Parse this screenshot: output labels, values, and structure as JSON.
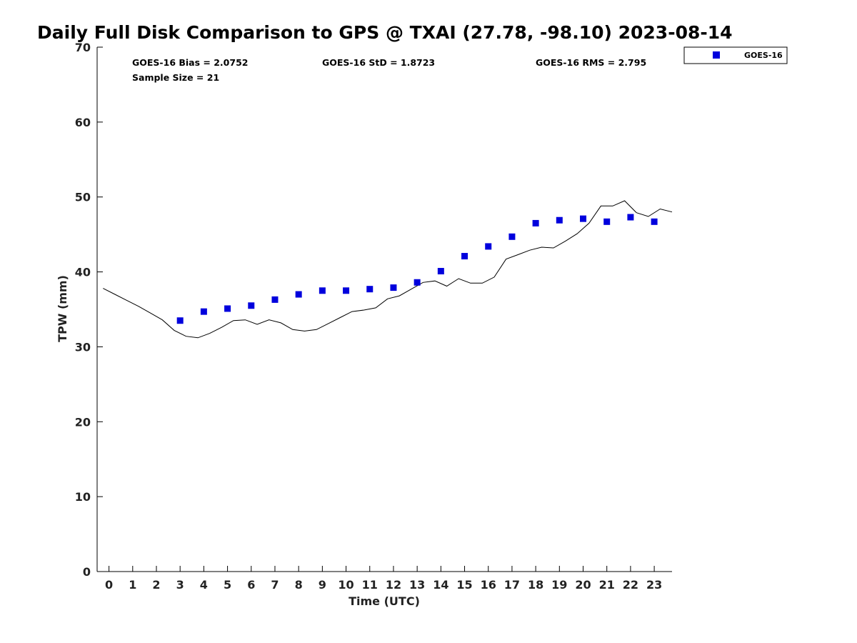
{
  "chart_data": {
    "type": "scatter",
    "title": "Daily Full Disk Comparison to GPS @ TXAI (27.78, -98.10) 2023-08-14",
    "xlabel": "Time (UTC)",
    "ylabel": "TPW (mm)",
    "xlim": [
      -0.5,
      23.75
    ],
    "ylim": [
      0,
      70
    ],
    "x_ticks": [
      0,
      1,
      2,
      3,
      4,
      5,
      6,
      7,
      8,
      9,
      10,
      11,
      12,
      13,
      14,
      15,
      16,
      17,
      18,
      19,
      20,
      21,
      22,
      23
    ],
    "y_ticks": [
      0,
      10,
      20,
      30,
      40,
      50,
      60,
      70
    ],
    "grid": false,
    "legend": {
      "placement": "outside-top-right",
      "entries": [
        "GOES-16"
      ]
    },
    "stats": {
      "bias": "GOES-16 Bias = 2.0752",
      "std": "GOES-16 StD = 1.8723",
      "rms": "GOES-16 RMS = 2.795",
      "sample": "Sample Size = 21"
    },
    "series": [
      {
        "name": "GOES-16",
        "kind": "scatter",
        "color": "#0000dd",
        "marker": "square",
        "x": [
          3,
          4,
          5,
          6,
          7,
          8,
          9,
          10,
          11,
          12,
          13,
          14,
          15,
          16,
          17,
          18,
          19,
          20,
          21,
          22,
          23
        ],
        "y": [
          33.5,
          34.7,
          35.1,
          35.5,
          36.3,
          37.0,
          37.5,
          37.5,
          37.7,
          37.9,
          38.6,
          40.1,
          42.1,
          43.4,
          44.7,
          46.5,
          46.9,
          47.1,
          46.7,
          47.3,
          46.7
        ]
      },
      {
        "kind": "line",
        "color": "#000000",
        "x": [
          -0.25,
          0.25,
          0.75,
          1.25,
          1.75,
          2.25,
          2.75,
          3.25,
          3.75,
          4.25,
          4.75,
          5.25,
          5.75,
          6.25,
          6.75,
          7.25,
          7.75,
          8.25,
          8.75,
          9.25,
          9.75,
          10.25,
          10.75,
          11.25,
          11.75,
          12.25,
          12.75,
          13.25,
          13.75,
          14.25,
          14.75,
          15.25,
          15.75,
          16.25,
          16.75,
          17.25,
          17.75,
          18.25,
          18.75,
          19.25,
          19.75,
          20.25,
          20.75,
          21.25,
          21.75,
          22.25,
          22.75,
          23.25,
          23.75
        ],
        "y": [
          37.8,
          37.0,
          36.2,
          35.4,
          34.5,
          33.6,
          32.2,
          31.4,
          31.2,
          31.8,
          32.6,
          33.5,
          33.6,
          33.0,
          33.6,
          33.2,
          32.3,
          32.1,
          32.3,
          33.1,
          33.9,
          34.7,
          34.9,
          35.2,
          36.4,
          36.8,
          37.7,
          38.6,
          38.8,
          38.1,
          39.1,
          38.5,
          38.5,
          39.3,
          41.7,
          42.3,
          42.9,
          43.3,
          43.2,
          44.1,
          45.1,
          46.5,
          48.8,
          48.8,
          49.5,
          47.9,
          47.4,
          48.4,
          48.0
        ]
      }
    ]
  }
}
